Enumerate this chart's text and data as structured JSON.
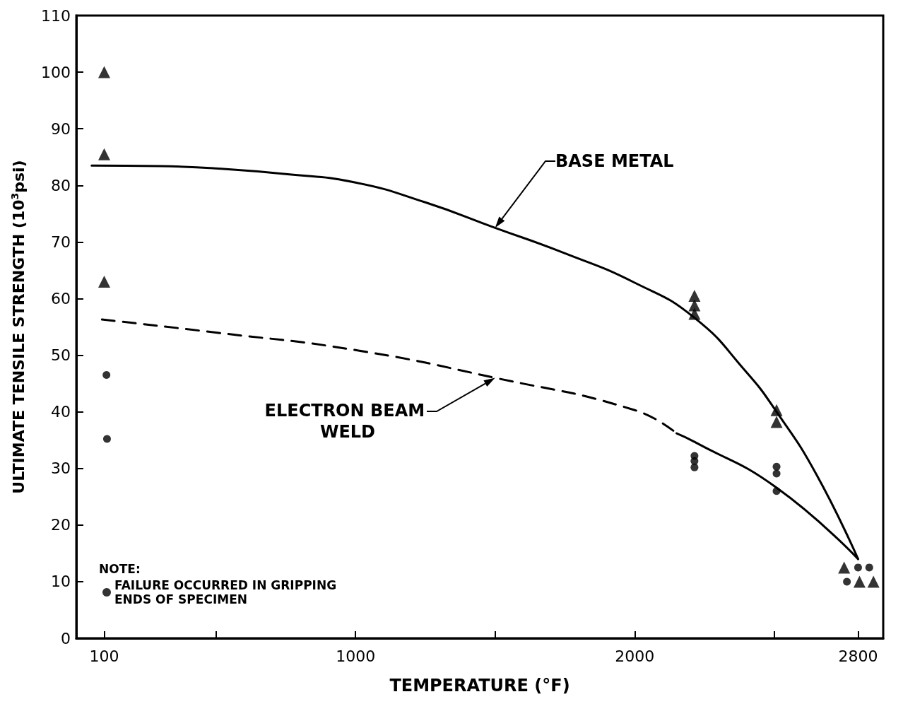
{
  "chart_data": {
    "type": "scatter",
    "xlabel": "TEMPERATURE (°F)",
    "ylabel": "ULTIMATE TENSILE STRENGTH (10$^{3}$psi)",
    "xlim": [
      0,
      2890
    ],
    "xticks": [
      100,
      {
        "value": 500,
        "label": null
      },
      1000,
      {
        "value": 1500,
        "label": null
      },
      2000,
      {
        "value": 2500,
        "label": null
      },
      2800
    ],
    "ylim": [
      0,
      110
    ],
    "yticks": [
      0,
      10,
      20,
      30,
      40,
      50,
      60,
      70,
      80,
      90,
      100,
      110
    ],
    "grid": false,
    "legend": "bottom left",
    "legend_title": "NOTE:",
    "series": [
      {
        "type": "line",
        "name": "BASE METAL",
        "color": "#000000",
        "line_style": "solid",
        "marker": "none",
        "x": [
          55,
          300,
          500,
          750,
          1000,
          1250,
          1500,
          1750,
          2000,
          2214,
          2400,
          2508,
          2650,
          2800
        ],
        "values": [
          83.5,
          83.4,
          83,
          82,
          80.5,
          77,
          72.5,
          68,
          62.8,
          56.6,
          47,
          40,
          29,
          14
        ]
      },
      {
        "type": "line",
        "name": "ELECTRON BEAM WELD",
        "color": "#000000",
        "line_style": "dashed",
        "marker": "none",
        "x": [
          92,
          500,
          1000,
          1500,
          2000,
          2150
        ],
        "values": [
          56.3,
          54,
          50.9,
          46,
          40.3,
          36.2
        ]
      },
      {
        "type": "line",
        "color": "#000000",
        "line_style": "solid",
        "marker": "none",
        "x": [
          2150,
          2214,
          2508,
          2800
        ],
        "values": [
          36.2,
          34.7,
          26.6,
          14
        ]
      },
      {
        "color": "#000000",
        "marker": "triangle",
        "x": [
          100,
          100,
          100,
          2214,
          2214,
          2214,
          2508,
          2508,
          2750,
          2805,
          2855
        ],
        "values": [
          100,
          85.5,
          63,
          60.5,
          58.8,
          57.3,
          40.3,
          38.2,
          12.5,
          10,
          10
        ]
      },
      {
        "color": "#000000",
        "marker": "circle",
        "x": [
          2214,
          2214,
          2214,
          2508,
          2508,
          2508,
          2760,
          2800,
          2840
        ],
        "values": [
          32.2,
          31.3,
          30.2,
          30.3,
          29.1,
          26,
          10,
          12.5,
          12.5
        ]
      },
      {
        "name": "FAILURE OCCURRED IN GRIPPING ENDS OF SPECIMEN",
        "color": "#000000",
        "marker": "circle",
        "x": [
          108,
          110
        ],
        "values": [
          46.5,
          35.2
        ]
      }
    ]
  }
}
